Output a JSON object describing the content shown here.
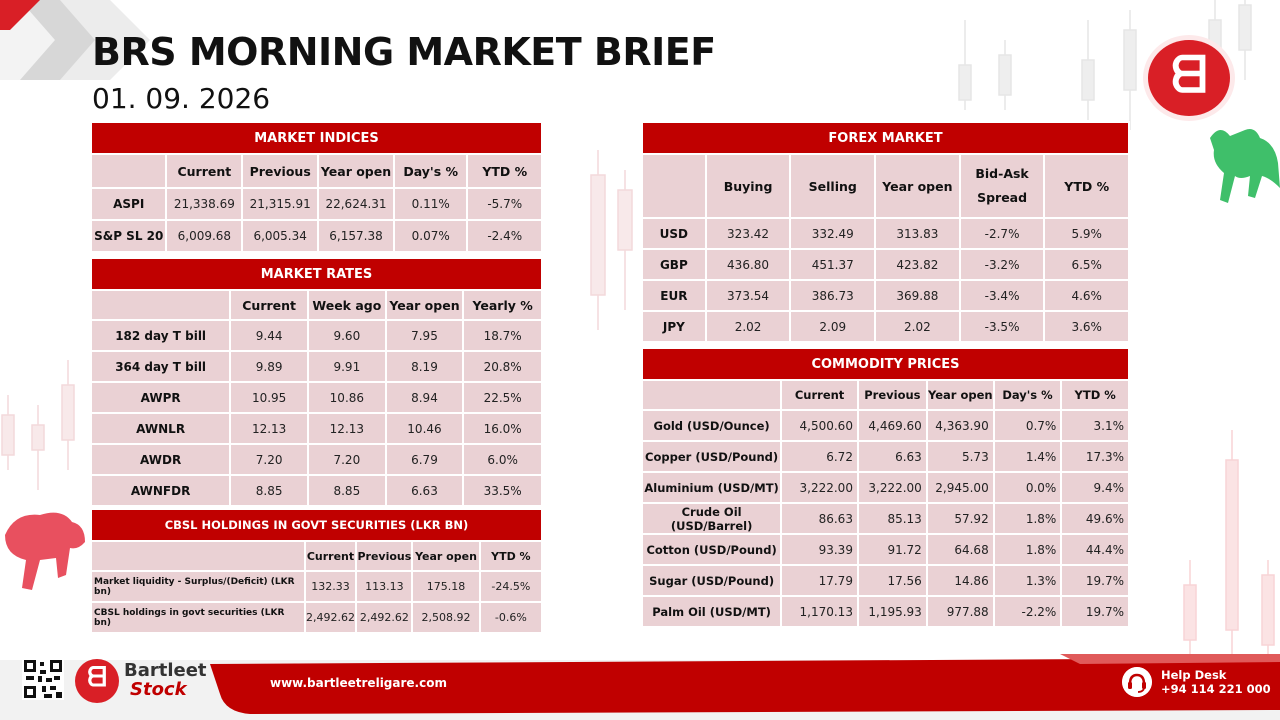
{
  "header": {
    "title": "BRS MORNING MARKET BRIEF",
    "date": "01. 09. 2026",
    "logo_icon": "bartleet-b-logo-icon",
    "brand_color": "#d91f26"
  },
  "market_indices": {
    "title": "MARKET INDICES",
    "columns": [
      "",
      "Current",
      "Previous",
      "Year open",
      "Day's %",
      "YTD %"
    ],
    "rows": [
      [
        "ASPI",
        "21,338.69",
        "21,315.91",
        "22,624.31",
        "0.11%",
        "-5.7%"
      ],
      [
        "S&P SL 20",
        "6,009.68",
        "6,005.34",
        "6,157.38",
        "0.07%",
        "-2.4%"
      ]
    ]
  },
  "market_rates": {
    "title": "MARKET RATES",
    "columns": [
      "",
      "Current",
      "Week ago",
      "Year open",
      "Yearly %"
    ],
    "rows": [
      [
        "182 day T bill",
        "9.44",
        "9.60",
        "7.95",
        "18.7%"
      ],
      [
        "364 day T bill",
        "9.89",
        "9.91",
        "8.19",
        "20.8%"
      ],
      [
        "AWPR",
        "10.95",
        "10.86",
        "8.94",
        "22.5%"
      ],
      [
        "AWNLR",
        "12.13",
        "12.13",
        "10.46",
        "16.0%"
      ],
      [
        "AWDR",
        "7.20",
        "7.20",
        "6.79",
        "6.0%"
      ],
      [
        "AWNFDR",
        "8.85",
        "8.85",
        "6.63",
        "33.5%"
      ]
    ]
  },
  "cbsl_holdings": {
    "title": "CBSL HOLDINGS IN GOVT SECURITIES (LKR BN)",
    "columns": [
      "",
      "Current",
      "Previous",
      "Year open",
      "YTD %"
    ],
    "rows": [
      [
        "Market liquidity - Surplus/(Deficit) (LKR bn)",
        "132.33",
        "113.13",
        "175.18",
        "-24.5%"
      ],
      [
        "CBSL holdings in govt securities (LKR bn)",
        "2,492.62",
        "2,492.62",
        "2,508.92",
        "-0.6%"
      ]
    ]
  },
  "forex_market": {
    "title": "FOREX MARKET",
    "columns": [
      "",
      "Buying",
      "Selling",
      "Year open",
      "Bid-Ask Spread",
      "YTD %"
    ],
    "rows": [
      [
        "USD",
        "323.42",
        "332.49",
        "313.83",
        "-2.7%",
        "5.9%"
      ],
      [
        "GBP",
        "436.80",
        "451.37",
        "423.82",
        "-3.2%",
        "6.5%"
      ],
      [
        "EUR",
        "373.54",
        "386.73",
        "369.88",
        "-3.4%",
        "4.6%"
      ],
      [
        "JPY",
        "2.02",
        "2.09",
        "2.02",
        "-3.5%",
        "3.6%"
      ]
    ]
  },
  "commodity_prices": {
    "title": "COMMODITY PRICES",
    "columns": [
      "",
      "Current",
      "Previous",
      "Year open",
      "Day's %",
      "YTD %"
    ],
    "rows": [
      [
        "Gold (USD/Ounce)",
        "4,500.60",
        "4,469.60",
        "4,363.90",
        "0.7%",
        "3.1%"
      ],
      [
        "Copper (USD/Pound)",
        "6.72",
        "6.63",
        "5.73",
        "1.4%",
        "17.3%"
      ],
      [
        "Aluminium (USD/MT)",
        "3,222.00",
        "3,222.00",
        "2,945.00",
        "0.0%",
        "9.4%"
      ],
      [
        "Crude Oil (USD/Barrel)",
        "86.63",
        "85.13",
        "57.92",
        "1.8%",
        "49.6%"
      ],
      [
        "Cotton (USD/Pound)",
        "93.39",
        "91.72",
        "64.68",
        "1.8%",
        "44.4%"
      ],
      [
        "Sugar (USD/Pound)",
        "17.79",
        "17.56",
        "14.86",
        "1.3%",
        "19.7%"
      ],
      [
        "Palm Oil (USD/MT)",
        "1,170.13",
        "1,195.93",
        "977.88",
        "-2.2%",
        "19.7%"
      ]
    ]
  },
  "footer": {
    "qr_icon": "qr-code-icon",
    "brand_name": "Bartleet",
    "brand_sub": "Stock",
    "website": "www.bartleetreligare.com",
    "help_icon": "headset-icon",
    "help_label": "Help Desk",
    "help_phone": "+94 114 221 000"
  }
}
